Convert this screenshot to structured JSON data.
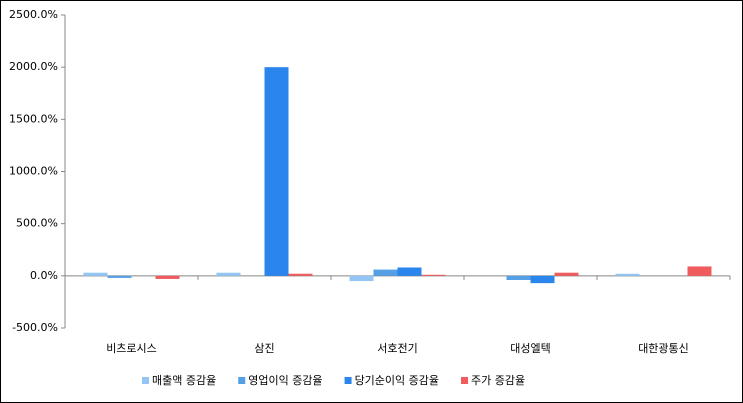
{
  "chart_data": {
    "type": "bar",
    "categories": [
      "비츠로시스",
      "삼진",
      "서호전기",
      "대성엘텍",
      "대한광통신"
    ],
    "series": [
      {
        "name": "매출액 증감율",
        "color": "#93c6f5",
        "values": [
          30,
          30,
          -50,
          0,
          20
        ]
      },
      {
        "name": "영업이익 증감율",
        "color": "#559fe6",
        "values": [
          -20,
          0,
          60,
          -40,
          0
        ]
      },
      {
        "name": "당기순이익 증감율",
        "color": "#2a86ec",
        "values": [
          0,
          2000,
          80,
          -70,
          0
        ]
      },
      {
        "name": "주가 증감율",
        "color": "#f05b5e",
        "values": [
          -30,
          20,
          10,
          30,
          90
        ]
      }
    ],
    "ylim": [
      -500,
      2500
    ],
    "yticks": [
      {
        "value": -500,
        "label": "-500.0%"
      },
      {
        "value": 0,
        "label": "0.0%"
      },
      {
        "value": 500,
        "label": "500.0%"
      },
      {
        "value": 1000,
        "label": "1000.0%"
      },
      {
        "value": 1500,
        "label": "1500.0%"
      },
      {
        "value": 2000,
        "label": "2000.0%"
      },
      {
        "value": 2500,
        "label": "2500.0%"
      }
    ],
    "legend": "bottom"
  }
}
